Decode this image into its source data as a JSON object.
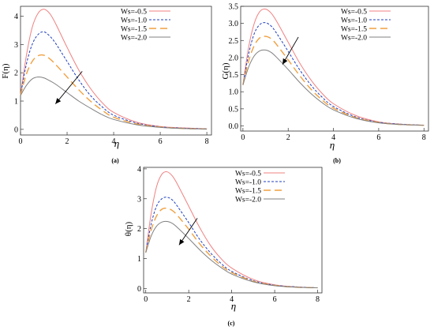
{
  "figure": {
    "background": "#ffffff"
  },
  "series_style": [
    {
      "color": "#f08080",
      "dash": "none"
    },
    {
      "color": "#1f3fbf",
      "dash": "3,2"
    },
    {
      "color": "#f0a040",
      "dash": "9,5"
    },
    {
      "color": "#808080",
      "dash": "none"
    }
  ],
  "chart_data": [
    {
      "type": "line",
      "panel_label": "(a)",
      "xlabel": "η",
      "ylabel": "F(η)",
      "xlim": [
        0,
        8.2
      ],
      "ylim": [
        -0.2,
        4.35
      ],
      "xticks": [
        0,
        2,
        4,
        6,
        8
      ],
      "yticks": [
        0,
        1,
        2,
        3,
        4
      ],
      "legend_position": "top-right",
      "arrow": true,
      "series": [
        {
          "name": "Ws=-0.5",
          "x": [
            0,
            0.25,
            0.5,
            0.75,
            1,
            1.25,
            1.5,
            2,
            2.5,
            3,
            3.5,
            4,
            5,
            6,
            7,
            8
          ],
          "y": [
            1.2,
            2.6,
            3.6,
            4.1,
            4.25,
            4.1,
            3.75,
            2.9,
            2.1,
            1.45,
            0.95,
            0.6,
            0.25,
            0.1,
            0.05,
            0.02
          ]
        },
        {
          "name": "Ws=-1.0",
          "x": [
            0,
            0.25,
            0.5,
            0.75,
            1,
            1.25,
            1.5,
            2,
            2.5,
            3,
            3.5,
            4,
            5,
            6,
            7,
            8
          ],
          "y": [
            1.2,
            2.3,
            3.0,
            3.35,
            3.45,
            3.3,
            3.05,
            2.4,
            1.75,
            1.2,
            0.8,
            0.5,
            0.22,
            0.09,
            0.04,
            0.02
          ]
        },
        {
          "name": "Ws=-1.5",
          "x": [
            0,
            0.25,
            0.5,
            0.75,
            1,
            1.25,
            1.5,
            2,
            2.5,
            3,
            3.5,
            4,
            5,
            6,
            7,
            8
          ],
          "y": [
            1.2,
            1.95,
            2.4,
            2.6,
            2.62,
            2.5,
            2.3,
            1.85,
            1.4,
            1.0,
            0.68,
            0.43,
            0.19,
            0.08,
            0.03,
            0.01
          ]
        },
        {
          "name": "Ws=-2.0",
          "x": [
            0,
            0.25,
            0.5,
            0.75,
            1,
            1.25,
            1.5,
            2,
            2.5,
            3,
            3.5,
            4,
            5,
            6,
            7,
            8
          ],
          "y": [
            1.2,
            1.55,
            1.78,
            1.85,
            1.82,
            1.72,
            1.6,
            1.3,
            1.0,
            0.75,
            0.52,
            0.35,
            0.16,
            0.07,
            0.03,
            0.01
          ]
        }
      ]
    },
    {
      "type": "line",
      "panel_label": "(b)",
      "xlabel": "η",
      "ylabel": "G(η)",
      "xlim": [
        -0.1,
        8.2
      ],
      "ylim": [
        -0.15,
        3.5
      ],
      "xticks": [
        0,
        2,
        4,
        6,
        8
      ],
      "yticks": [
        0.0,
        0.5,
        1.0,
        1.5,
        2.0,
        2.5,
        3.0,
        3.5
      ],
      "legend_position": "top-right",
      "arrow": true,
      "series": [
        {
          "name": "Ws=-0.5",
          "x": [
            0,
            0.25,
            0.5,
            0.75,
            1,
            1.25,
            1.5,
            2,
            2.5,
            3,
            3.5,
            4,
            5,
            6,
            7,
            8
          ],
          "y": [
            1.2,
            2.3,
            3.0,
            3.35,
            3.42,
            3.3,
            3.05,
            2.45,
            1.85,
            1.35,
            0.95,
            0.65,
            0.3,
            0.12,
            0.05,
            0.02
          ]
        },
        {
          "name": "Ws=-1.0",
          "x": [
            0,
            0.25,
            0.5,
            0.75,
            1,
            1.25,
            1.5,
            2,
            2.5,
            3,
            3.5,
            4,
            5,
            6,
            7,
            8
          ],
          "y": [
            1.2,
            2.1,
            2.7,
            2.97,
            3.02,
            2.92,
            2.7,
            2.18,
            1.65,
            1.2,
            0.84,
            0.57,
            0.26,
            0.11,
            0.05,
            0.02
          ]
        },
        {
          "name": "Ws=-1.5",
          "x": [
            0,
            0.25,
            0.5,
            0.75,
            1,
            1.25,
            1.5,
            2,
            2.5,
            3,
            3.5,
            4,
            5,
            6,
            7,
            8
          ],
          "y": [
            1.2,
            1.9,
            2.35,
            2.58,
            2.62,
            2.55,
            2.37,
            1.93,
            1.48,
            1.08,
            0.76,
            0.52,
            0.24,
            0.1,
            0.04,
            0.02
          ]
        },
        {
          "name": "Ws=-2.0",
          "x": [
            0,
            0.25,
            0.5,
            0.75,
            1,
            1.25,
            1.5,
            2,
            2.5,
            3,
            3.5,
            4,
            5,
            6,
            7,
            8
          ],
          "y": [
            1.2,
            1.72,
            2.05,
            2.2,
            2.22,
            2.15,
            2.0,
            1.65,
            1.28,
            0.95,
            0.68,
            0.47,
            0.22,
            0.09,
            0.04,
            0.02
          ]
        }
      ]
    },
    {
      "type": "line",
      "panel_label": "(c)",
      "xlabel": "η",
      "ylabel": "θ(η)",
      "xlim": [
        -0.1,
        8.2
      ],
      "ylim": [
        -0.15,
        4.05
      ],
      "xticks": [
        0,
        2,
        4,
        6,
        8
      ],
      "yticks": [
        0,
        1,
        2,
        3,
        4
      ],
      "legend_position": "top-right",
      "arrow": true,
      "series": [
        {
          "name": "Ws=-0.5",
          "x": [
            0,
            0.25,
            0.5,
            0.75,
            1,
            1.25,
            1.5,
            2,
            2.5,
            3,
            3.5,
            4,
            5,
            6,
            7,
            8
          ],
          "y": [
            1.2,
            2.5,
            3.4,
            3.82,
            3.9,
            3.75,
            3.45,
            2.75,
            2.05,
            1.45,
            1.0,
            0.68,
            0.3,
            0.12,
            0.05,
            0.02
          ]
        },
        {
          "name": "Ws=-1.0",
          "x": [
            0,
            0.25,
            0.5,
            0.75,
            1,
            1.25,
            1.5,
            2,
            2.5,
            3,
            3.5,
            4,
            5,
            6,
            7,
            8
          ],
          "y": [
            1.2,
            2.15,
            2.75,
            3.0,
            3.05,
            2.95,
            2.72,
            2.2,
            1.65,
            1.2,
            0.84,
            0.57,
            0.26,
            0.11,
            0.05,
            0.02
          ]
        },
        {
          "name": "Ws=-1.5",
          "x": [
            0,
            0.25,
            0.5,
            0.75,
            1,
            1.25,
            1.5,
            2,
            2.5,
            3,
            3.5,
            4,
            5,
            6,
            7,
            8
          ],
          "y": [
            1.2,
            1.95,
            2.42,
            2.65,
            2.68,
            2.6,
            2.42,
            1.98,
            1.5,
            1.1,
            0.77,
            0.53,
            0.24,
            0.1,
            0.04,
            0.02
          ]
        },
        {
          "name": "Ws=-2.0",
          "x": [
            0,
            0.25,
            0.5,
            0.75,
            1,
            1.25,
            1.5,
            2,
            2.5,
            3,
            3.5,
            4,
            5,
            6,
            7,
            8
          ],
          "y": [
            1.2,
            1.75,
            2.08,
            2.22,
            2.24,
            2.17,
            2.02,
            1.67,
            1.3,
            0.97,
            0.7,
            0.48,
            0.22,
            0.09,
            0.04,
            0.02
          ]
        }
      ]
    }
  ]
}
